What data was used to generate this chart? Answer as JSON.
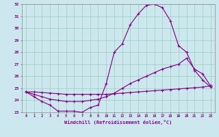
{
  "xlabel": "Windchill (Refroidissement éolien,°C)",
  "background_color": "#cce8ee",
  "line_color": "#880088",
  "grid_color": "#99ccbb",
  "xlim_min": -0.5,
  "xlim_max": 23.5,
  "ylim_min": 23,
  "ylim_max": 32,
  "yticks": [
    23,
    24,
    25,
    26,
    27,
    28,
    29,
    30,
    31,
    32
  ],
  "xticks": [
    0,
    1,
    2,
    3,
    4,
    5,
    6,
    7,
    8,
    9,
    10,
    11,
    12,
    13,
    14,
    15,
    16,
    17,
    18,
    19,
    20,
    21,
    22,
    23
  ],
  "curve1_x": [
    0,
    1,
    2,
    3,
    4,
    5,
    6,
    7,
    8,
    9,
    10,
    11,
    12,
    13,
    14,
    15,
    16,
    17,
    18,
    19,
    20,
    21,
    22,
    23
  ],
  "curve1_y": [
    24.7,
    24.3,
    23.9,
    23.6,
    23.1,
    23.1,
    23.1,
    23.0,
    23.4,
    23.6,
    25.4,
    28.0,
    28.7,
    30.3,
    31.2,
    31.9,
    32.0,
    31.7,
    30.6,
    28.55,
    28.0,
    26.5,
    25.7,
    25.1
  ],
  "curve2_x": [
    0,
    1,
    2,
    3,
    4,
    5,
    6,
    7,
    8,
    9,
    10,
    11,
    12,
    13,
    14,
    15,
    16,
    17,
    18,
    19,
    20,
    21,
    22,
    23
  ],
  "curve2_y": [
    24.7,
    24.5,
    24.3,
    24.1,
    24.0,
    23.9,
    23.9,
    23.9,
    24.0,
    24.1,
    24.3,
    24.6,
    25.0,
    25.4,
    25.7,
    26.0,
    26.3,
    26.6,
    26.8,
    27.0,
    27.5,
    26.6,
    26.2,
    25.2
  ],
  "curve3_x": [
    0,
    1,
    2,
    3,
    4,
    5,
    6,
    7,
    8,
    9,
    10,
    11,
    12,
    13,
    14,
    15,
    16,
    17,
    18,
    19,
    20,
    21,
    22,
    23
  ],
  "curve3_y": [
    24.7,
    24.7,
    24.65,
    24.6,
    24.55,
    24.5,
    24.5,
    24.5,
    24.5,
    24.5,
    24.5,
    24.55,
    24.6,
    24.65,
    24.7,
    24.75,
    24.8,
    24.85,
    24.9,
    24.95,
    25.0,
    25.05,
    25.1,
    25.2
  ]
}
